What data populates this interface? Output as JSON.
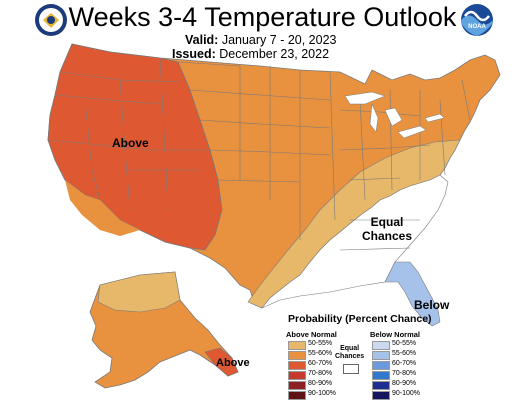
{
  "header": {
    "title": "Weeks 3-4 Temperature Outlook",
    "valid_label": "Valid:",
    "valid_value": "January 7 - 20, 2023",
    "issued_label": "Issued:",
    "issued_value": "December 23, 2022"
  },
  "logos": {
    "left": "commerce-seal",
    "right": "noaa-logo",
    "right_text": "NOAA"
  },
  "map_labels": {
    "above_west": "Above",
    "equal_chances_line1": "Equal",
    "equal_chances_line2": "Chances",
    "below_fl": "Below",
    "above_ak": "Above"
  },
  "legend": {
    "title": "Probability (Percent Chance)",
    "above_heading": "Above Normal",
    "below_heading": "Below Normal",
    "equal_line1": "Equal",
    "equal_line2": "Chances",
    "above_items": [
      {
        "label": "50-55%",
        "color": "#e8b86a"
      },
      {
        "label": "55-60%",
        "color": "#e8913f"
      },
      {
        "label": "60-70%",
        "color": "#de5832"
      },
      {
        "label": "70-80%",
        "color": "#c63a2c"
      },
      {
        "label": "80-90%",
        "color": "#8e1f23"
      },
      {
        "label": "90-100%",
        "color": "#5e1214"
      }
    ],
    "below_items": [
      {
        "label": "50-55%",
        "color": "#c9d9ef"
      },
      {
        "label": "55-60%",
        "color": "#a6c1ea"
      },
      {
        "label": "60-70%",
        "color": "#6c99de"
      },
      {
        "label": "70-80%",
        "color": "#3079cc"
      },
      {
        "label": "80-90%",
        "color": "#1e2f8f"
      },
      {
        "label": "90-100%",
        "color": "#15175e"
      }
    ]
  },
  "colors": {
    "above_55_60": "#e8913f",
    "above_60_70": "#de5832",
    "above_50_55": "#e8b86a",
    "below_55_60": "#a6c1ea",
    "border": "#7a7a7a"
  }
}
